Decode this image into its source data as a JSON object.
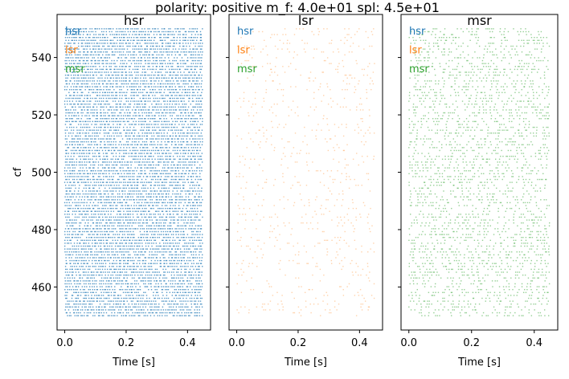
{
  "figure": {
    "suptitle": "polarity: positive m_f: 4.0e+01 spl: 4.5e+01",
    "colors": {
      "hsr": "#1f77b4",
      "lsr": "#ff7f0e",
      "msr": "#2ca02c"
    }
  },
  "chart_data": [
    {
      "type": "scatter",
      "title": "hsr",
      "xlabel": "Time [s]",
      "ylabel": "cf",
      "xlim": [
        -0.025,
        0.475
      ],
      "ylim": [
        445,
        555
      ],
      "xticks": [
        0.0,
        0.2,
        0.4
      ],
      "xtick_labels": [
        "0.0",
        "0.2",
        "0.4"
      ],
      "yticks": [
        460,
        480,
        500,
        520,
        540
      ],
      "ytick_labels": [
        "460",
        "480",
        "500",
        "520",
        "540"
      ],
      "legend": [
        "hsr",
        "lsr",
        "msr"
      ],
      "legend_location": "upper-left",
      "series": [
        {
          "name": "hsr",
          "color": "#1f77b4",
          "density": 0.85,
          "dot_alpha": 0.75,
          "cf_range": [
            450,
            550
          ],
          "cf_rows": 100,
          "time_range": [
            0.0,
            0.45
          ]
        }
      ]
    },
    {
      "type": "scatter",
      "title": "lsr",
      "xlabel": "Time [s]",
      "xlim": [
        -0.025,
        0.475
      ],
      "ylim": [
        445,
        555
      ],
      "xticks": [
        0.0,
        0.2,
        0.4
      ],
      "xtick_labels": [
        "0.0",
        "0.2",
        "0.4"
      ],
      "legend": [
        "hsr",
        "lsr",
        "msr"
      ],
      "legend_location": "upper-left",
      "series": [
        {
          "name": "lsr",
          "color": "#ff7f0e",
          "density": 0.1,
          "dot_alpha": 0.35,
          "cf_range": [
            450,
            550
          ],
          "cf_rows": 100,
          "time_range": [
            0.0,
            0.45
          ]
        }
      ]
    },
    {
      "type": "scatter",
      "title": "msr",
      "xlabel": "Time [s]",
      "xlim": [
        -0.025,
        0.475
      ],
      "ylim": [
        445,
        555
      ],
      "xticks": [
        0.0,
        0.2,
        0.4
      ],
      "xtick_labels": [
        "0.0",
        "0.2",
        "0.4"
      ],
      "legend": [
        "hsr",
        "lsr",
        "msr"
      ],
      "legend_location": "upper-left",
      "series": [
        {
          "name": "msr",
          "color": "#2ca02c",
          "density": 0.32,
          "dot_alpha": 0.5,
          "cf_range": [
            450,
            550
          ],
          "cf_rows": 100,
          "time_range": [
            0.0,
            0.45
          ]
        }
      ]
    }
  ]
}
